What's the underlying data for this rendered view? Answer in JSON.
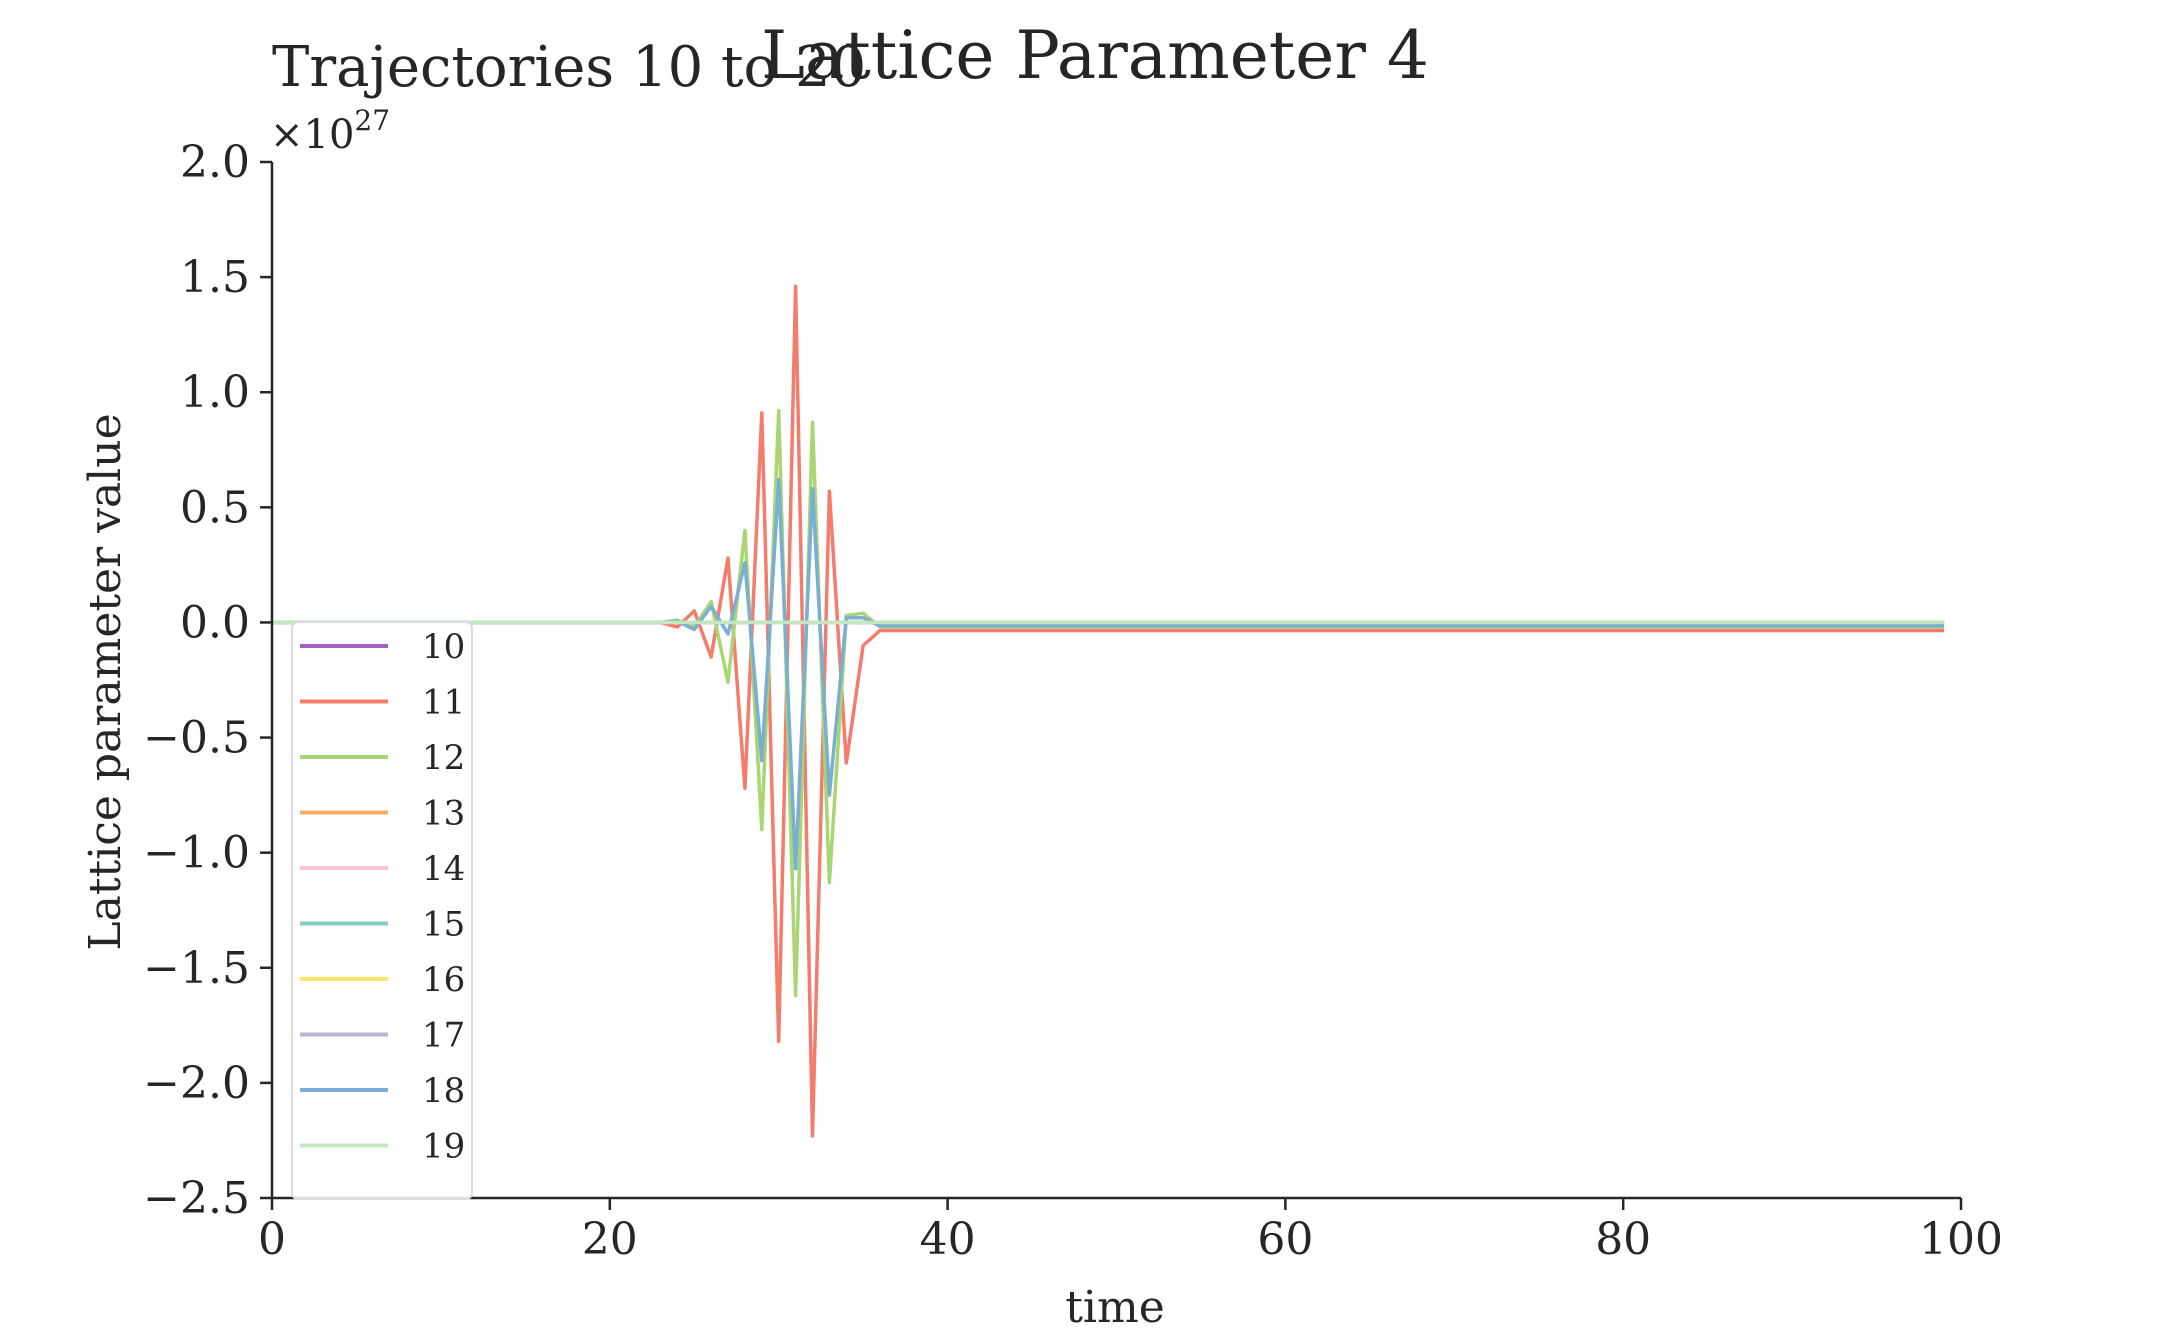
{
  "chart_data": {
    "type": "line",
    "title": "Lattice Parameter 4",
    "subtitle": "Trajectories 10 to 20",
    "xlabel": "time",
    "ylabel": "Lattice parameter value",
    "xlim": [
      0,
      100
    ],
    "ylim": [
      -2.5,
      2.0
    ],
    "y_scale_multiplier": {
      "base": "×10",
      "exponent": "27"
    },
    "xticks": [
      0,
      20,
      40,
      60,
      80,
      100
    ],
    "xtick_labels": [
      "0",
      "20",
      "40",
      "60",
      "80",
      "100"
    ],
    "yticks": [
      2.0,
      1.5,
      1.0,
      0.5,
      0.0,
      -0.5,
      -1.0,
      -1.5,
      -2.0,
      -2.5
    ],
    "ytick_labels": [
      "2.0",
      "1.5",
      "1.0",
      "0.5",
      "0.0",
      "−0.5",
      "−1.0",
      "−1.5",
      "−2.0",
      "−2.5"
    ],
    "grid": false,
    "legend_position": "lower-left",
    "series": [
      {
        "name": "10",
        "color": "#a560c0",
        "x": [
          0,
          23,
          24,
          25,
          26,
          27,
          28,
          29,
          30,
          31,
          32,
          33,
          34,
          35,
          36,
          99
        ],
        "y": [
          0,
          0,
          0,
          0,
          0,
          0,
          0,
          0,
          0,
          0,
          0,
          0,
          0,
          0,
          0,
          0
        ]
      },
      {
        "name": "11",
        "color": "#f47c6c",
        "x": [
          0,
          23,
          24,
          25,
          26,
          27,
          28,
          29,
          30,
          31,
          32,
          33,
          34,
          35,
          36,
          99
        ],
        "y": [
          0,
          0,
          -0.02,
          0.05,
          -0.15,
          0.28,
          -0.72,
          0.91,
          -1.82,
          1.46,
          -2.23,
          0.57,
          -0.61,
          -0.1,
          -0.035,
          -0.035
        ]
      },
      {
        "name": "12",
        "color": "#a8d672",
        "x": [
          0,
          23,
          24,
          25,
          26,
          27,
          28,
          29,
          30,
          31,
          32,
          33,
          34,
          35,
          36,
          99
        ],
        "y": [
          0,
          0,
          0.01,
          -0.02,
          0.09,
          -0.26,
          0.4,
          -0.9,
          0.92,
          -1.62,
          0.87,
          -1.13,
          0.03,
          0.04,
          -0.02,
          -0.02
        ]
      },
      {
        "name": "13",
        "color": "#f6ab6c",
        "x": [
          0,
          23,
          24,
          25,
          26,
          27,
          28,
          29,
          30,
          31,
          32,
          33,
          34,
          35,
          36,
          99
        ],
        "y": [
          0,
          0,
          0,
          0,
          0,
          0,
          0,
          0,
          0,
          0,
          0,
          0,
          0,
          0,
          0,
          0
        ]
      },
      {
        "name": "14",
        "color": "#f9c6d8",
        "x": [
          0,
          23,
          24,
          25,
          26,
          27,
          28,
          29,
          30,
          31,
          32,
          33,
          34,
          35,
          36,
          99
        ],
        "y": [
          0,
          0,
          0,
          0,
          0,
          0,
          0,
          0,
          0,
          0,
          0,
          0,
          0,
          0,
          0,
          0
        ]
      },
      {
        "name": "15",
        "color": "#86cfc3",
        "x": [
          0,
          23,
          24,
          25,
          26,
          27,
          28,
          29,
          30,
          31,
          32,
          33,
          34,
          35,
          36,
          99
        ],
        "y": [
          0,
          0,
          0,
          0,
          0,
          0,
          0,
          0,
          0,
          0,
          0,
          0,
          0,
          0,
          0,
          0
        ]
      },
      {
        "name": "16",
        "color": "#fbe46b",
        "x": [
          0,
          23,
          24,
          25,
          26,
          27,
          28,
          29,
          30,
          31,
          32,
          33,
          34,
          35,
          36,
          99
        ],
        "y": [
          0,
          0,
          0,
          0,
          0,
          0,
          0,
          0,
          0,
          0,
          0,
          0,
          0,
          0,
          0,
          0
        ]
      },
      {
        "name": "17",
        "color": "#b8b3d6",
        "x": [
          0,
          23,
          24,
          25,
          26,
          27,
          28,
          29,
          30,
          31,
          32,
          33,
          34,
          35,
          36,
          99
        ],
        "y": [
          0,
          0,
          0,
          0,
          0,
          0,
          0,
          0,
          0,
          0,
          0,
          0,
          0,
          0,
          0,
          0
        ]
      },
      {
        "name": "18",
        "color": "#7aaed3",
        "x": [
          0,
          23,
          24,
          25,
          26,
          27,
          28,
          29,
          30,
          31,
          32,
          33,
          34,
          35,
          36,
          99
        ],
        "y": [
          0,
          0,
          0.005,
          -0.03,
          0.07,
          -0.05,
          0.26,
          -0.6,
          0.62,
          -1.07,
          0.58,
          -0.75,
          0.02,
          0.02,
          -0.015,
          -0.015
        ]
      },
      {
        "name": "19",
        "color": "#c4e6c0",
        "x": [
          0,
          23,
          24,
          25,
          26,
          27,
          28,
          29,
          30,
          31,
          32,
          33,
          34,
          35,
          36,
          99
        ],
        "y": [
          0,
          0,
          0,
          0,
          0,
          0,
          0,
          0,
          0,
          0,
          0,
          0,
          0,
          0,
          0,
          0
        ]
      }
    ]
  }
}
